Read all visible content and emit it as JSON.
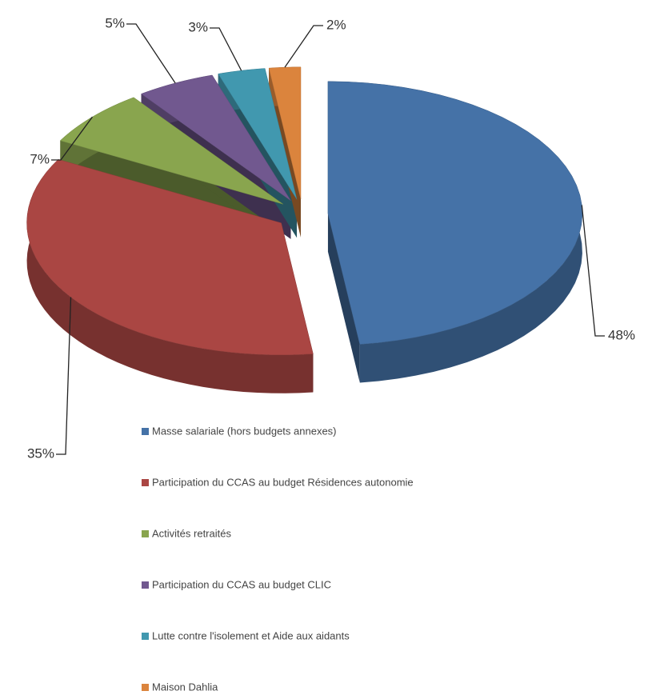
{
  "chart_data": {
    "type": "pie3d",
    "categories": [
      "Masse salariale (hors budgets annexes)",
      "Participation du CCAS au budget Résidences autonomie",
      "Activités retraités",
      "Participation du CCAS au budget CLIC",
      "Lutte contre l'isolement et Aide aux aidants",
      "Maison Dahlia"
    ],
    "values": [
      48,
      35,
      7,
      5,
      3,
      2
    ],
    "value_labels": [
      "48%",
      "35%",
      "7%",
      "5%",
      "3%",
      "2%"
    ],
    "colors": [
      "#4572a7",
      "#aa4643",
      "#89a54e",
      "#71588f",
      "#4198af",
      "#db843d"
    ]
  }
}
